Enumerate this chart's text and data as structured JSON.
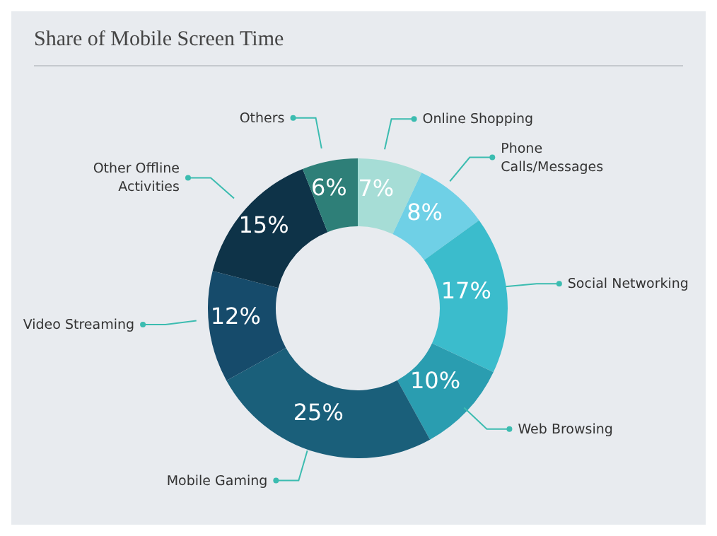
{
  "chart_data": {
    "type": "donut",
    "title": "Share of Mobile Screen Time",
    "categories": [
      "Online Shopping",
      "Phone Calls/Messages",
      "Social Networking",
      "Web Browsing",
      "Mobile Gaming",
      "Video Streaming",
      "Other Offline Activities",
      "Others"
    ],
    "values": [
      7,
      8,
      17,
      10,
      25,
      12,
      15,
      6
    ],
    "value_labels": [
      "7%",
      "8%",
      "17%",
      "10%",
      "25%",
      "12%",
      "15%",
      "6%"
    ],
    "colors": [
      "#a6ddd6",
      "#6fd0e6",
      "#3bbccc",
      "#2a9db0",
      "#1a5f7a",
      "#164b6b",
      "#0e3348",
      "#2e7f78"
    ]
  }
}
